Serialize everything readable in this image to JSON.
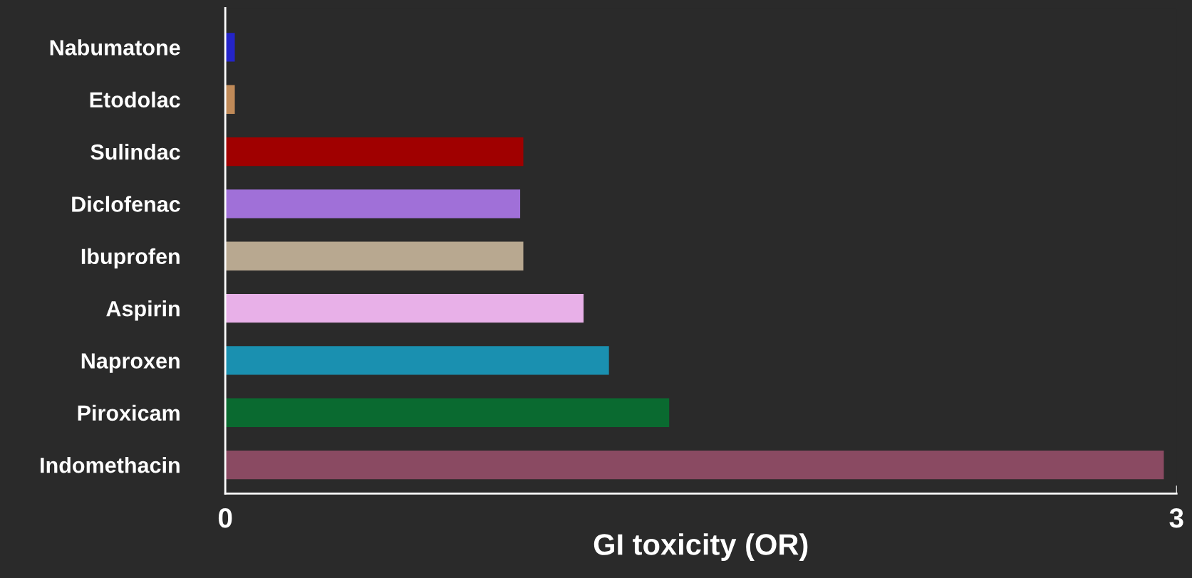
{
  "chart_data": {
    "type": "bar",
    "orientation": "horizontal",
    "xlabel": "GI toxicity (OR)",
    "categories": [
      "Nabumatone",
      "Etodolac",
      "Sulindac",
      "Diclofenac",
      "Ibuprofen",
      "Aspirin",
      "Naproxen",
      "Piroxicam",
      "Indomethacin"
    ],
    "values": [
      0.03,
      0.03,
      0.94,
      0.93,
      0.94,
      1.13,
      1.21,
      1.4,
      2.96
    ],
    "colors": [
      "#2424c8",
      "#c08a58",
      "#a00000",
      "#a070d8",
      "#b8a890",
      "#e8b0e8",
      "#1a90b0",
      "#0a6a30",
      "#8a4a62"
    ],
    "xlim": [
      0,
      3
    ],
    "xticks": [
      0,
      3
    ],
    "grid": false,
    "legend": false
  }
}
